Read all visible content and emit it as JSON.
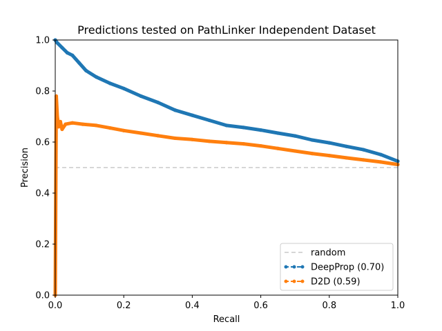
{
  "chart_data": {
    "type": "line",
    "title": "Predictions tested on PathLinker Independent Dataset",
    "xlabel": "Recall",
    "ylabel": "Precision",
    "xlim": [
      0,
      1
    ],
    "ylim": [
      0,
      1
    ],
    "x_ticks": [
      "0.0",
      "0.2",
      "0.4",
      "0.6",
      "0.8",
      "1.0"
    ],
    "y_ticks": [
      "0.0",
      "0.2",
      "0.4",
      "0.6",
      "0.8",
      "1.0"
    ],
    "grid": false,
    "legend_position": "lower right",
    "series": [
      {
        "name": "random",
        "color": "#c8c8c8",
        "style": "dashed",
        "x": [
          0,
          1
        ],
        "y": [
          0.5,
          0.5
        ]
      },
      {
        "name": "DeepProp (0.70)",
        "color": "#1f77b4",
        "style": "dashed-marker",
        "x": [
          0.0,
          0.005,
          0.02,
          0.035,
          0.05,
          0.07,
          0.09,
          0.12,
          0.16,
          0.2,
          0.25,
          0.3,
          0.35,
          0.4,
          0.45,
          0.5,
          0.55,
          0.6,
          0.65,
          0.7,
          0.75,
          0.8,
          0.85,
          0.9,
          0.95,
          1.0
        ],
        "y": [
          1.0,
          0.99,
          0.97,
          0.95,
          0.94,
          0.91,
          0.88,
          0.855,
          0.83,
          0.81,
          0.78,
          0.755,
          0.725,
          0.705,
          0.685,
          0.665,
          0.657,
          0.647,
          0.635,
          0.624,
          0.608,
          0.597,
          0.583,
          0.57,
          0.551,
          0.525
        ]
      },
      {
        "name": "D2D (0.59)",
        "color": "#ff7f0e",
        "style": "dashed-marker",
        "x": [
          0.0,
          0.003,
          0.006,
          0.01,
          0.015,
          0.02,
          0.03,
          0.05,
          0.08,
          0.12,
          0.16,
          0.2,
          0.25,
          0.3,
          0.35,
          0.4,
          0.45,
          0.5,
          0.55,
          0.6,
          0.65,
          0.7,
          0.75,
          0.8,
          0.85,
          0.9,
          0.95,
          1.0
        ],
        "y": [
          0.0,
          0.78,
          0.7,
          0.66,
          0.68,
          0.65,
          0.67,
          0.675,
          0.67,
          0.665,
          0.655,
          0.645,
          0.635,
          0.625,
          0.615,
          0.61,
          0.603,
          0.598,
          0.593,
          0.585,
          0.575,
          0.565,
          0.555,
          0.547,
          0.538,
          0.53,
          0.522,
          0.512
        ]
      }
    ]
  }
}
